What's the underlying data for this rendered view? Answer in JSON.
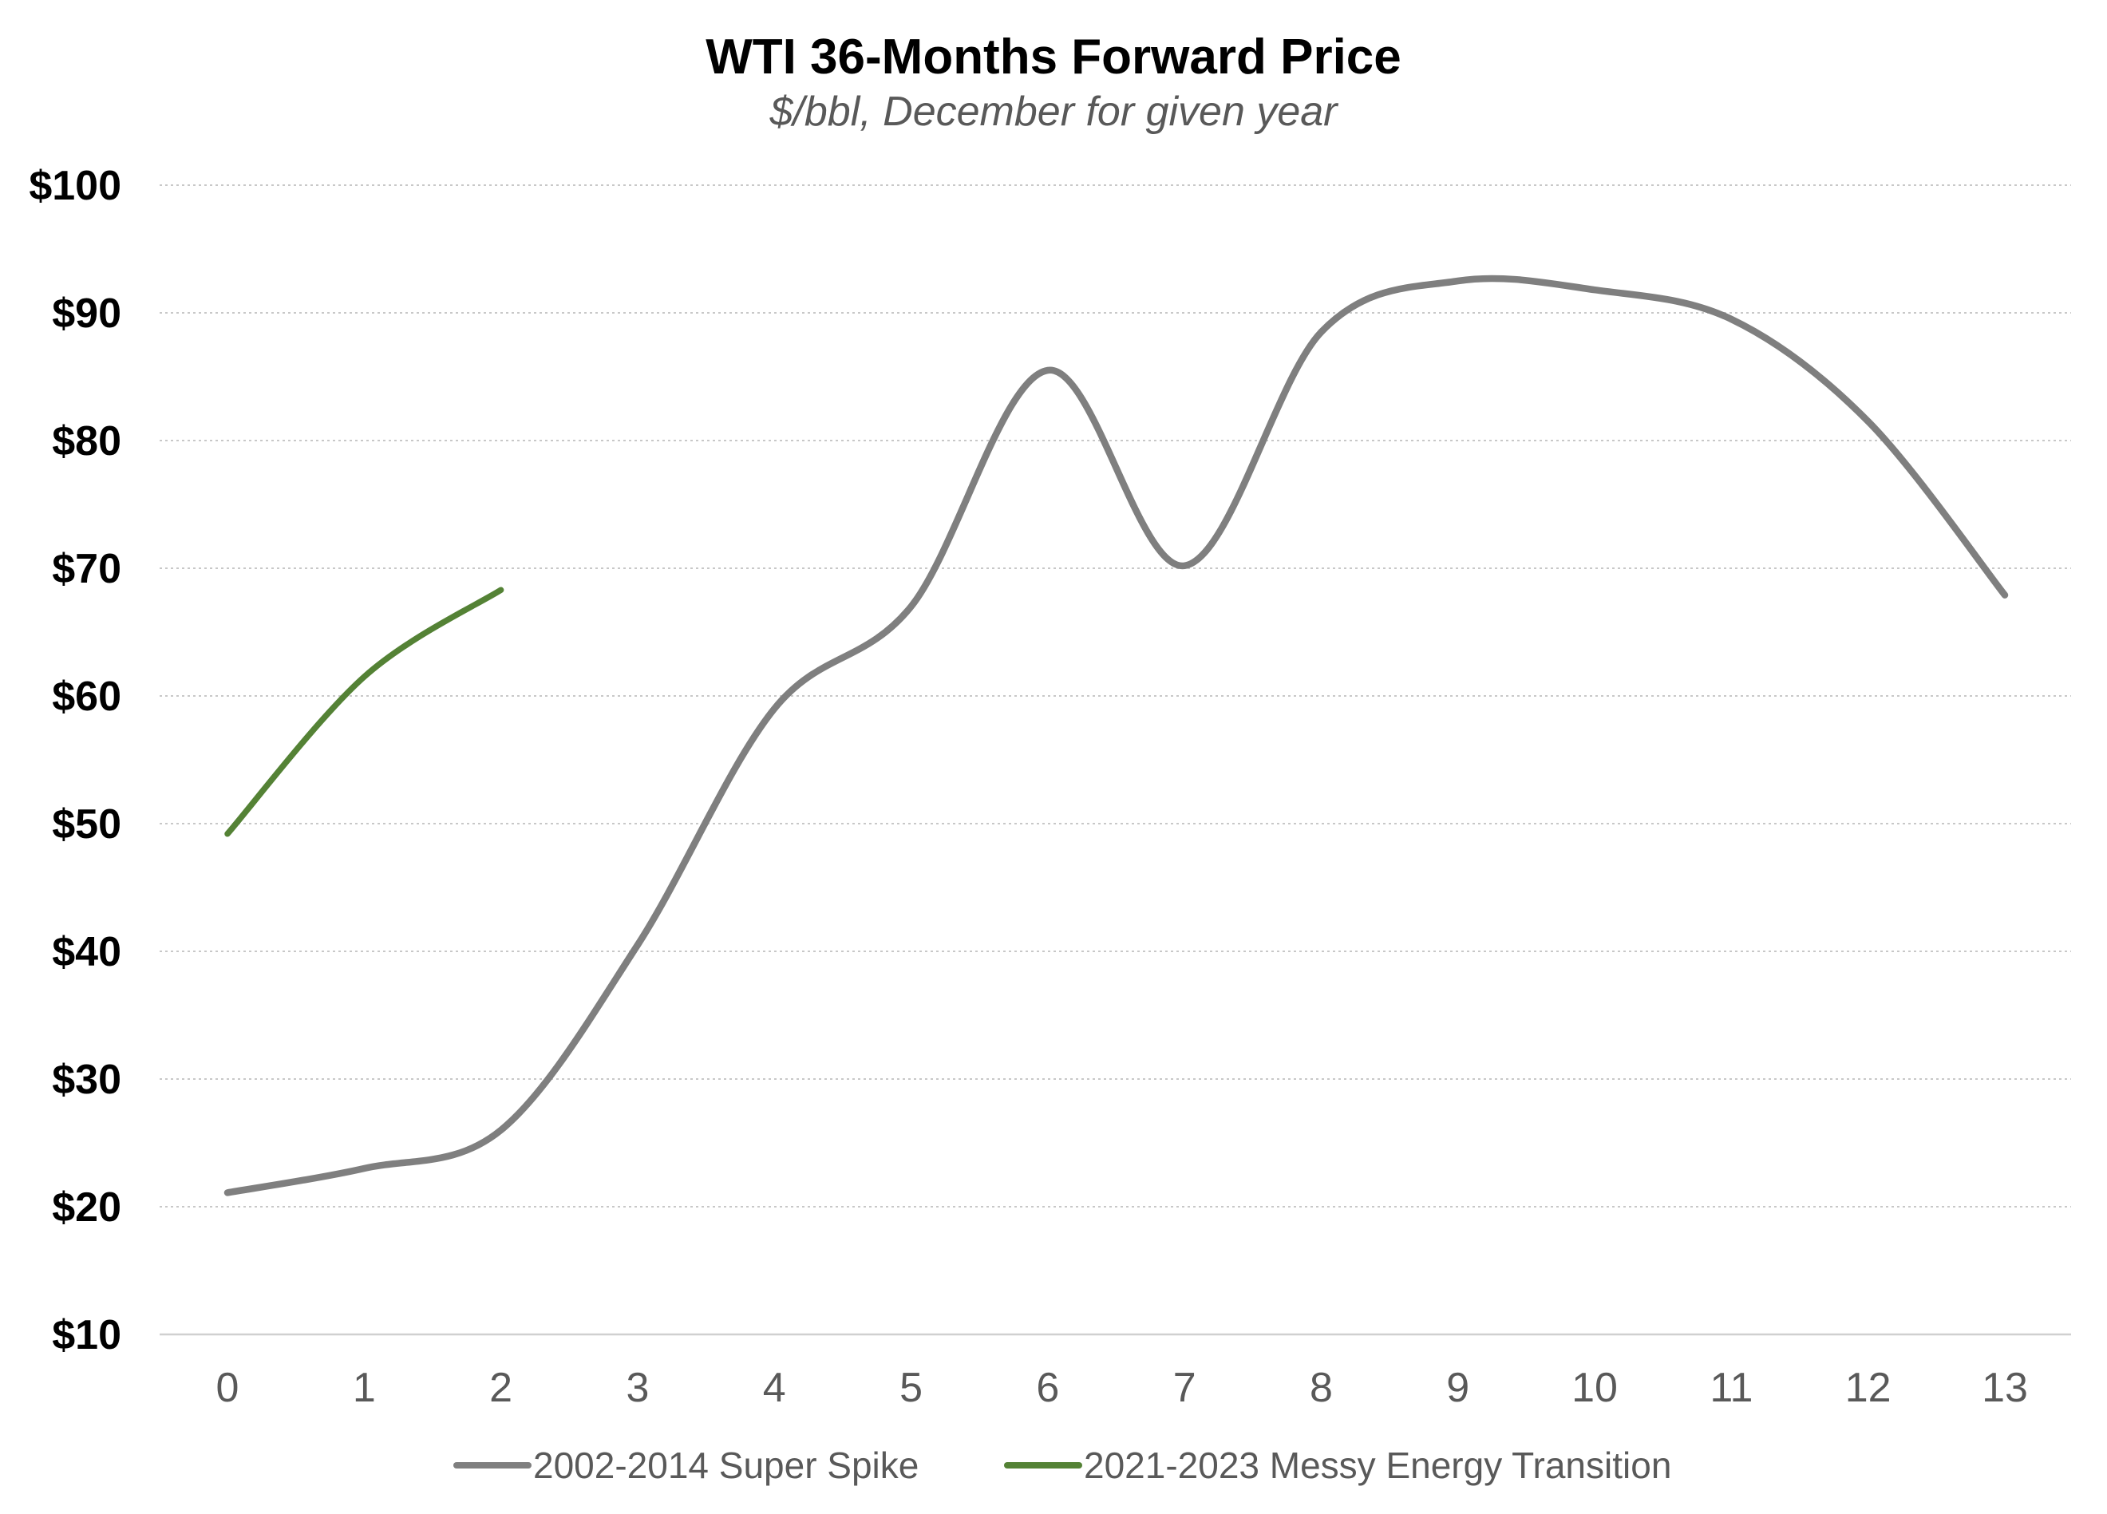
{
  "chart_data": {
    "type": "line",
    "title": "WTI 36-Months Forward Price",
    "subtitle": "$/bbl, December for given year",
    "xlabel": "",
    "ylabel": "",
    "x_ticks": [
      "0",
      "1",
      "2",
      "3",
      "4",
      "5",
      "6",
      "7",
      "8",
      "9",
      "10",
      "11",
      "12",
      "13"
    ],
    "y_ticks": [
      "$10",
      "$20",
      "$30",
      "$40",
      "$50",
      "$60",
      "$70",
      "$80",
      "$90",
      "$100"
    ],
    "xlim": [
      0,
      13
    ],
    "ylim": [
      10,
      100
    ],
    "grid": "horizontal dotted",
    "legend_position": "bottom",
    "smooth": true,
    "series": [
      {
        "name": "2002-2014 Super Spike",
        "color": "#7f7f7f",
        "x": [
          0,
          1,
          2,
          3,
          4,
          5,
          6,
          7,
          8,
          9,
          10,
          11,
          12,
          13
        ],
        "values": [
          21.1,
          23,
          26,
          40.5,
          59,
          67,
          85.5,
          70.2,
          88.5,
          92.5,
          91.8,
          89.5,
          81.5,
          67.9
        ]
      },
      {
        "name": "2021-2023 Messy Energy Transition",
        "color": "#548235",
        "x": [
          0,
          1,
          2
        ],
        "values": [
          49.2,
          61.5,
          68.3
        ]
      }
    ]
  }
}
